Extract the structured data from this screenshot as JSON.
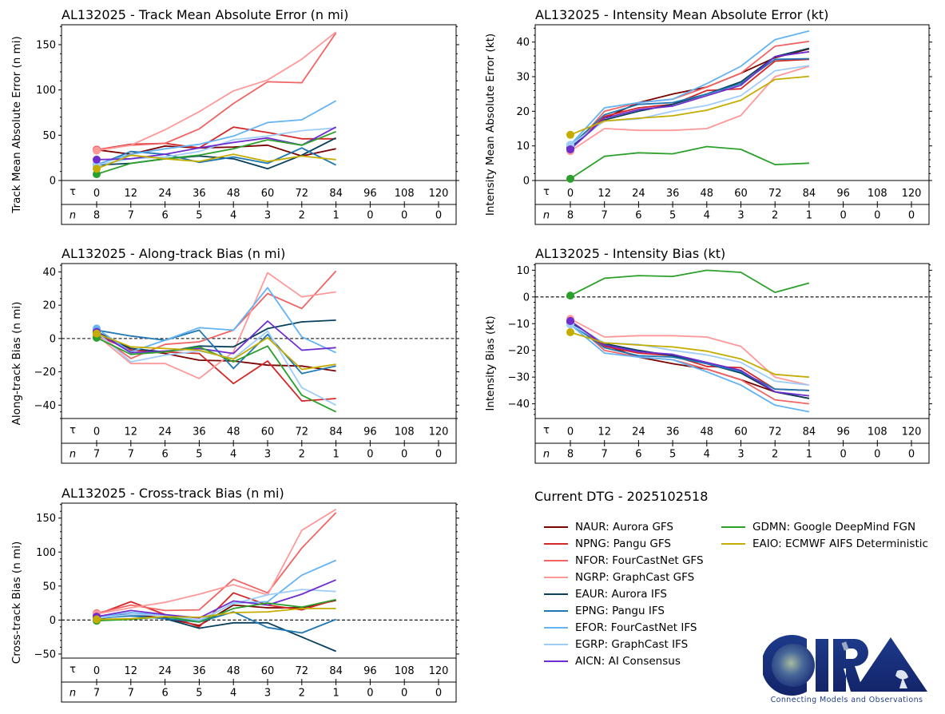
{
  "figure": {
    "dtg_label": "Current DTG - 2025102518",
    "logo": {
      "name": "CIRA",
      "tagline": "Connecting Models and Observations"
    }
  },
  "models": [
    {
      "id": "NAUR",
      "label": "NAUR: Aurora GFS",
      "color": "#7b0000"
    },
    {
      "id": "NPNG",
      "label": "NPNG: Pangu GFS",
      "color": "#d62728"
    },
    {
      "id": "NFOR",
      "label": "NFOR: FourCastNet GFS",
      "color": "#f26464"
    },
    {
      "id": "NGRP",
      "label": "NGRP: GraphCast GFS",
      "color": "#ff9999"
    },
    {
      "id": "EAUR",
      "label": "EAUR: Aurora IFS",
      "color": "#08405e"
    },
    {
      "id": "EPNG",
      "label": "EPNG: Pangu IFS",
      "color": "#1f77b4"
    },
    {
      "id": "EFOR",
      "label": "EFOR: FourCastNet IFS",
      "color": "#63b3f5"
    },
    {
      "id": "EGRP",
      "label": "EGRP: GraphCast IFS",
      "color": "#9fcdfa"
    },
    {
      "id": "AICN",
      "label": "AICN: AI Consensus",
      "color": "#6f2ccf"
    },
    {
      "id": "GDMN",
      "label": "GDMN: Google DeepMind FGN",
      "color": "#2ca02c"
    },
    {
      "id": "EAIO",
      "label": "EAIO: ECMWF AIFS Deterministic",
      "color": "#c4ad00"
    }
  ],
  "chart_data": [
    {
      "type": "line",
      "title": "AL132025 - Track Mean Absolute Error (n mi)",
      "ylabel": "Track Mean Absolute Error (n mi)",
      "xlabel": "τ",
      "x": [
        0,
        12,
        24,
        36,
        48,
        60,
        72,
        84
      ],
      "xticks": [
        0,
        12,
        24,
        36,
        48,
        60,
        72,
        84,
        96,
        108,
        120
      ],
      "n_label": "n",
      "n_counts": [
        8,
        7,
        6,
        5,
        4,
        3,
        2,
        1,
        0,
        0,
        0
      ],
      "ylim": [
        0,
        172
      ],
      "yticks": [
        0,
        50,
        100,
        150
      ],
      "zero_line": false,
      "series": [
        {
          "name": "NAUR",
          "values": [
            34,
            29,
            38,
            36,
            37,
            39,
            27,
            35
          ]
        },
        {
          "name": "NPNG",
          "values": [
            34,
            40,
            41,
            36,
            59,
            53,
            46,
            46
          ]
        },
        {
          "name": "NFOR",
          "values": [
            34,
            39,
            41,
            57,
            85,
            109,
            108,
            163
          ]
        },
        {
          "name": "NGRP",
          "values": [
            33,
            39,
            56,
            76,
            99,
            111,
            134,
            164
          ]
        },
        {
          "name": "EAUR",
          "values": [
            17,
            19,
            24,
            27,
            24,
            13,
            28,
            47
          ]
        },
        {
          "name": "EPNG",
          "values": [
            17,
            32,
            29,
            20,
            26,
            19,
            36,
            17
          ]
        },
        {
          "name": "EFOR",
          "values": [
            18,
            29,
            35,
            40,
            49,
            64,
            67,
            88
          ]
        },
        {
          "name": "EGRP",
          "values": [
            17,
            24,
            26,
            32,
            45,
            49,
            55,
            58
          ]
        },
        {
          "name": "AICN",
          "values": [
            23,
            24,
            29,
            36,
            42,
            47,
            39,
            59
          ]
        },
        {
          "name": "GDMN",
          "values": [
            7,
            19,
            24,
            28,
            35,
            45,
            39,
            54
          ]
        },
        {
          "name": "EAIO",
          "values": [
            13,
            28,
            24,
            21,
            29,
            21,
            27,
            23
          ]
        }
      ]
    },
    {
      "type": "line",
      "title": "AL132025 - Intensity Mean Absolute Error (kt)",
      "ylabel": "Intensity Mean Absolute Error (kt)",
      "xlabel": "τ",
      "x": [
        0,
        12,
        24,
        36,
        48,
        60,
        72,
        84
      ],
      "xticks": [
        0,
        12,
        24,
        36,
        48,
        60,
        72,
        84,
        96,
        108,
        120
      ],
      "n_label": "n",
      "n_counts": [
        8,
        7,
        6,
        5,
        4,
        3,
        2,
        1,
        0,
        0,
        0
      ],
      "ylim": [
        0,
        45
      ],
      "yticks": [
        0,
        10,
        20,
        30,
        40
      ],
      "zero_line": false,
      "series": [
        {
          "name": "NAUR",
          "values": [
            9,
            18,
            22.5,
            25,
            27,
            31,
            35.5,
            38
          ]
        },
        {
          "name": "NPNG",
          "values": [
            9,
            18.5,
            21,
            22,
            26,
            26.5,
            34.5,
            35
          ]
        },
        {
          "name": "NFOR",
          "values": [
            8.7,
            20,
            22.5,
            23.5,
            27,
            31,
            38.8,
            40.2
          ]
        },
        {
          "name": "NGRP",
          "values": [
            8.5,
            15,
            14.5,
            14.5,
            15,
            18.8,
            30,
            33
          ]
        },
        {
          "name": "EAUR",
          "values": [
            9.5,
            17.5,
            20,
            22,
            25,
            28.5,
            35.8,
            38.2
          ]
        },
        {
          "name": "EPNG",
          "values": [
            10,
            19,
            22,
            22.5,
            25,
            28,
            35,
            35.2
          ]
        },
        {
          "name": "EFOR",
          "values": [
            10.3,
            21,
            22.5,
            23.5,
            28,
            33,
            40.7,
            43.2
          ]
        },
        {
          "name": "EGRP",
          "values": [
            10.3,
            17.2,
            17.8,
            20,
            21.7,
            24.5,
            31.7,
            33.2
          ]
        },
        {
          "name": "AICN",
          "values": [
            9,
            18,
            20.5,
            21.5,
            24.5,
            27.5,
            35.8,
            37.2
          ]
        },
        {
          "name": "GDMN",
          "values": [
            0.5,
            7,
            8,
            7.7,
            9.8,
            9,
            4.6,
            5
          ]
        },
        {
          "name": "EAIO",
          "values": [
            13.2,
            17.2,
            18,
            18.7,
            20.3,
            23.2,
            29.2,
            30.1
          ]
        }
      ]
    },
    {
      "type": "line",
      "title": "AL132025 - Along-track Bias (n mi)",
      "ylabel": "Along-track Bias (n mi)",
      "xlabel": "τ",
      "x": [
        0,
        12,
        24,
        36,
        48,
        60,
        72,
        84
      ],
      "xticks": [
        0,
        12,
        24,
        36,
        48,
        60,
        72,
        84,
        96,
        108,
        120
      ],
      "n_label": "n",
      "n_counts": [
        7,
        7,
        6,
        5,
        4,
        3,
        2,
        1,
        0,
        0,
        0
      ],
      "ylim": [
        -48,
        45
      ],
      "yticks": [
        -40,
        -20,
        0,
        20,
        40
      ],
      "zero_line": true,
      "series": [
        {
          "name": "NAUR",
          "values": [
            3,
            -6,
            -9,
            -13,
            -13.5,
            -16,
            -16.5,
            -19.5
          ]
        },
        {
          "name": "NPNG",
          "values": [
            2,
            -7,
            -8,
            -9,
            -27,
            -13.5,
            -37.5,
            -36
          ]
        },
        {
          "name": "NFOR",
          "values": [
            3,
            -12,
            -3.5,
            -2,
            5,
            27,
            18,
            40.5
          ]
        },
        {
          "name": "NGRP",
          "values": [
            2,
            -15,
            -15,
            -24,
            -8,
            39.5,
            25,
            28
          ]
        },
        {
          "name": "EAUR",
          "values": [
            4,
            -6,
            -8,
            -4.5,
            -5,
            6,
            10,
            11
          ]
        },
        {
          "name": "EPNG",
          "values": [
            5,
            1.5,
            -1,
            5,
            -18,
            2.5,
            -21,
            -16.5
          ]
        },
        {
          "name": "EFOR",
          "values": [
            6,
            -8,
            -1,
            6.5,
            5,
            30.5,
            1,
            -8.5
          ]
        },
        {
          "name": "EGRP",
          "values": [
            4,
            -14,
            -10,
            -7.5,
            -12,
            4.5,
            -29.5,
            -40
          ]
        },
        {
          "name": "AICN",
          "values": [
            4,
            -8.5,
            -7.5,
            -6,
            -9,
            10.5,
            -7,
            -5.5
          ]
        },
        {
          "name": "GDMN",
          "values": [
            0.5,
            -9.5,
            -8,
            -5,
            -14,
            -4.5,
            -34,
            -44
          ]
        },
        {
          "name": "EAIO",
          "values": [
            3,
            -5,
            -6,
            -7,
            -12.5,
            0.5,
            -18.5,
            -15.5
          ]
        }
      ]
    },
    {
      "type": "line",
      "title": "AL132025 - Intensity Bias (kt)",
      "ylabel": "Intensity Bias (kt)",
      "xlabel": "τ",
      "x": [
        0,
        12,
        24,
        36,
        48,
        60,
        72,
        84
      ],
      "xticks": [
        0,
        12,
        24,
        36,
        48,
        60,
        72,
        84,
        96,
        108,
        120
      ],
      "n_label": "n",
      "n_counts": [
        8,
        7,
        6,
        5,
        4,
        3,
        2,
        1,
        0,
        0,
        0
      ],
      "ylim": [
        -45.5,
        12.5
      ],
      "yticks": [
        -40,
        -30,
        -20,
        -10,
        0,
        10
      ],
      "zero_line": true,
      "series": [
        {
          "name": "NAUR",
          "values": [
            -9,
            -18,
            -22.5,
            -25,
            -27,
            -31,
            -35.5,
            -38
          ]
        },
        {
          "name": "NPNG",
          "values": [
            -9,
            -18.5,
            -21,
            -22,
            -26,
            -26.5,
            -34.5,
            -35
          ]
        },
        {
          "name": "NFOR",
          "values": [
            -8.7,
            -20,
            -22.5,
            -23.5,
            -27,
            -31,
            -38.5,
            -40
          ]
        },
        {
          "name": "NGRP",
          "values": [
            -8.2,
            -15,
            -14.5,
            -14.5,
            -15,
            -18.5,
            -30,
            -33
          ]
        },
        {
          "name": "EAUR",
          "values": [
            -9.5,
            -17.5,
            -20,
            -22,
            -25,
            -28.5,
            -35.5,
            -38
          ]
        },
        {
          "name": "EPNG",
          "values": [
            -10,
            -19,
            -22,
            -22.5,
            -25,
            -28,
            -34.5,
            -35
          ]
        },
        {
          "name": "EFOR",
          "values": [
            -10.3,
            -21,
            -22.5,
            -23.5,
            -28,
            -33,
            -40.5,
            -43
          ]
        },
        {
          "name": "EGRP",
          "values": [
            -10.3,
            -17.2,
            -17.8,
            -20,
            -21.7,
            -24.5,
            -31.5,
            -33
          ]
        },
        {
          "name": "AICN",
          "values": [
            -9,
            -18,
            -20.5,
            -21.5,
            -24.5,
            -27.5,
            -35.5,
            -37
          ]
        },
        {
          "name": "GDMN",
          "values": [
            0.5,
            7,
            8,
            7.7,
            10,
            9.2,
            1.7,
            5.2
          ]
        },
        {
          "name": "EAIO",
          "values": [
            -13.2,
            -17.2,
            -18,
            -18.7,
            -20.3,
            -23.2,
            -29,
            -30
          ]
        }
      ]
    },
    {
      "type": "line",
      "title": "AL132025 - Cross-track Bias (n mi)",
      "ylabel": "Cross-track Bias (n mi)",
      "xlabel": "τ",
      "x": [
        0,
        12,
        24,
        36,
        48,
        60,
        72,
        84
      ],
      "xticks": [
        0,
        12,
        24,
        36,
        48,
        60,
        72,
        84,
        96,
        108,
        120
      ],
      "n_label": "n",
      "n_counts": [
        7,
        7,
        6,
        5,
        4,
        3,
        2,
        1,
        0,
        0,
        0
      ],
      "ylim": [
        -56,
        172
      ],
      "yticks": [
        -50,
        0,
        50,
        100,
        150
      ],
      "zero_line": true,
      "series": [
        {
          "name": "NAUR",
          "values": [
            5,
            8,
            3,
            -8,
            22,
            18,
            18,
            29
          ]
        },
        {
          "name": "NPNG",
          "values": [
            8,
            27,
            8,
            -10,
            40,
            22,
            15,
            30
          ]
        },
        {
          "name": "NFOR",
          "values": [
            10,
            22,
            14,
            15,
            60,
            40,
            106,
            158
          ]
        },
        {
          "name": "NGRP",
          "values": [
            9,
            18,
            26,
            38,
            52,
            37,
            132,
            163
          ]
        },
        {
          "name": "EAUR",
          "values": [
            2,
            7,
            2,
            -12,
            -4,
            -4,
            -25,
            -46
          ]
        },
        {
          "name": "EPNG",
          "values": [
            3,
            6,
            2,
            -3,
            12,
            -11,
            -19,
            1
          ]
        },
        {
          "name": "EFOR",
          "values": [
            4,
            11,
            7,
            -2,
            25,
            27,
            66,
            88
          ]
        },
        {
          "name": "EGRP",
          "values": [
            3,
            8,
            7,
            0,
            24,
            37,
            45,
            42
          ]
        },
        {
          "name": "AICN",
          "values": [
            5,
            14,
            8,
            3,
            28,
            22,
            38,
            59
          ]
        },
        {
          "name": "GDMN",
          "values": [
            -1,
            1,
            5,
            -3,
            17,
            25,
            19,
            30
          ]
        },
        {
          "name": "EAIO",
          "values": [
            1,
            2,
            5,
            4,
            11,
            12,
            17,
            17
          ]
        }
      ]
    }
  ]
}
